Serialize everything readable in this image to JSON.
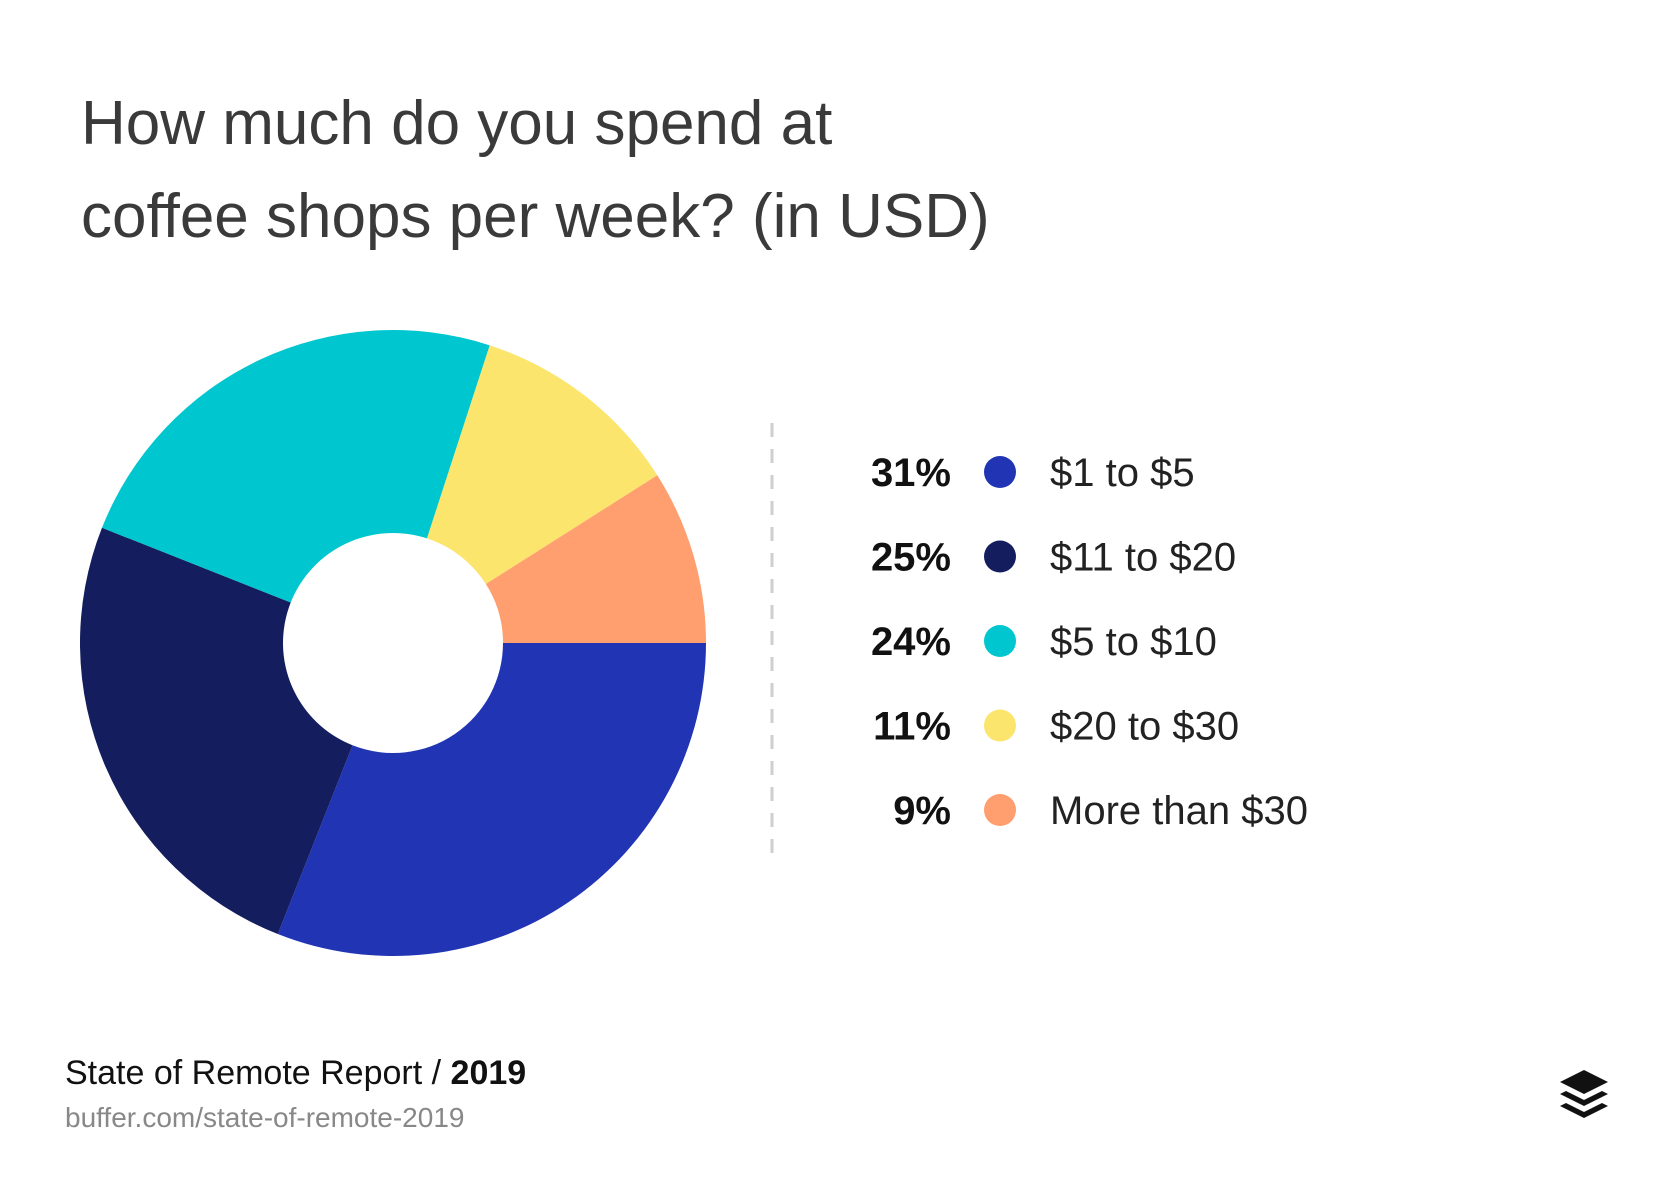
{
  "chart_data": {
    "type": "donut",
    "title": [
      "How much do you spend at",
      "coffee shops per week? (in USD)"
    ],
    "categories": [
      "$1 to $5",
      "$11 to $20",
      "$5 to $10",
      "$20 to $30",
      "More than $30"
    ],
    "values": [
      31,
      25,
      24,
      11,
      9
    ],
    "value_labels": [
      "31%",
      "25%",
      "24%",
      "11%",
      "9%"
    ],
    "colors": [
      "#2135b4",
      "#141e5e",
      "#00c7cf",
      "#fbe56d",
      "#ff9e6e"
    ],
    "source": "State of Remote Report /",
    "source_year": "2019",
    "url": "buffer.com/state-of-remote-2019"
  }
}
